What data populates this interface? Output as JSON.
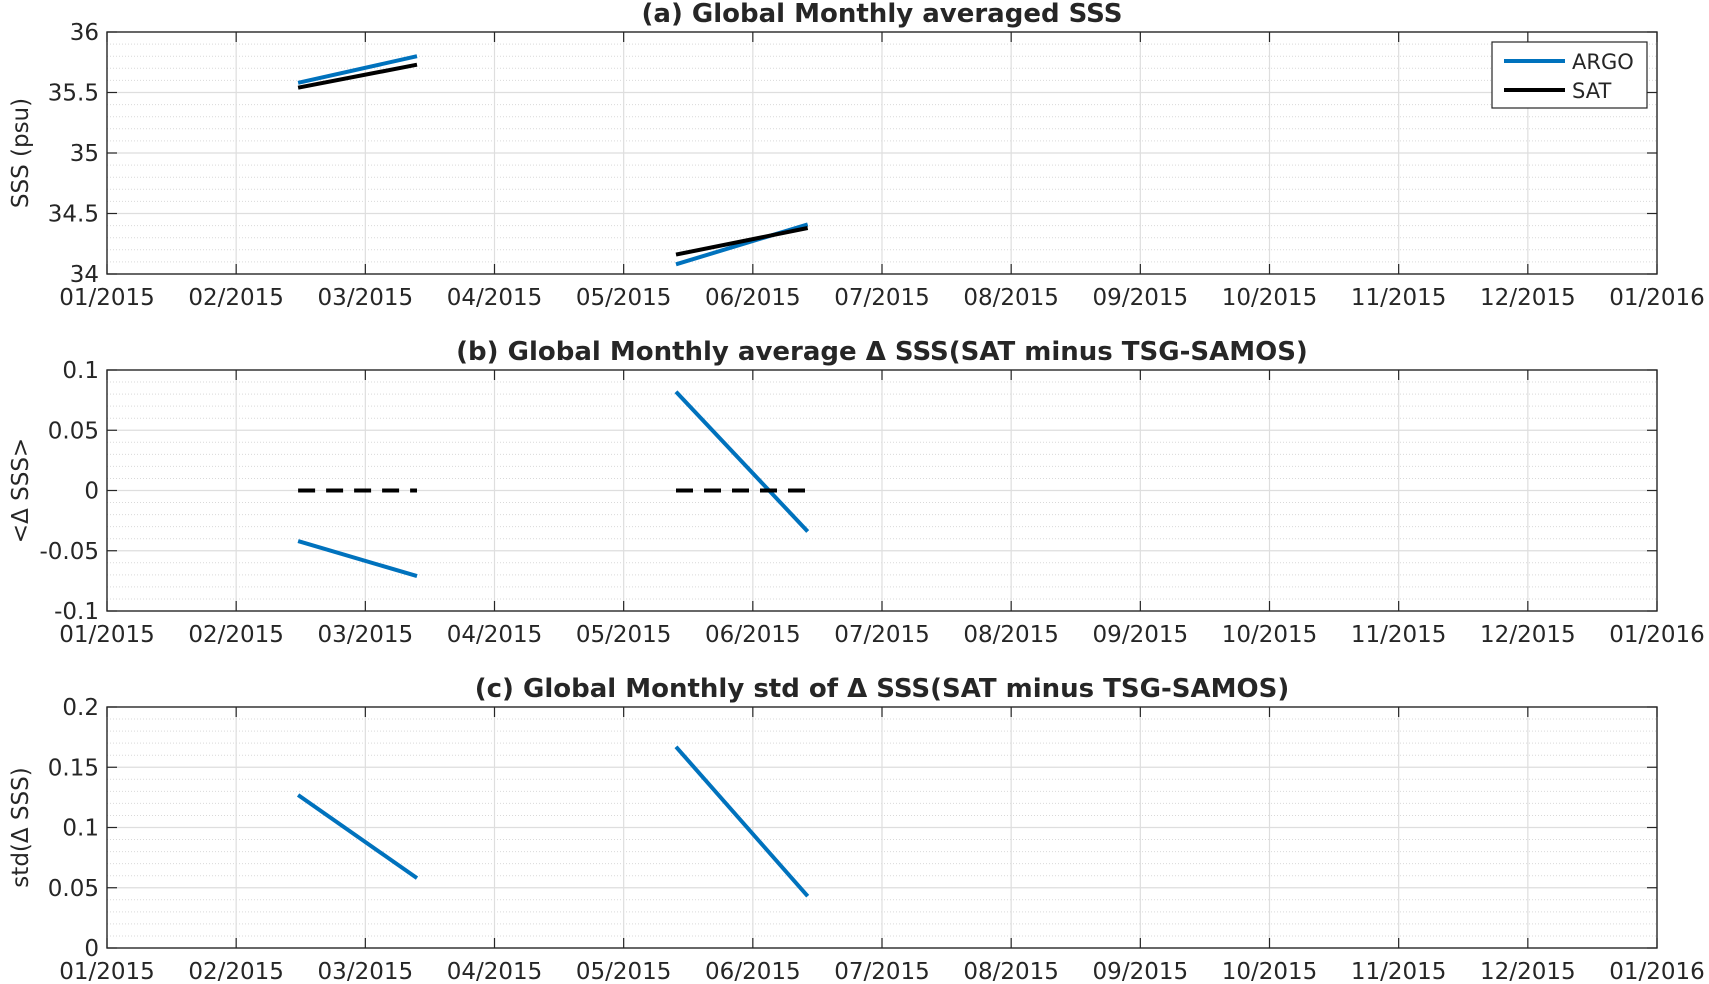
{
  "chart_data": [
    {
      "type": "line",
      "title": "(a) Global Monthly averaged SSS",
      "ylabel": "SSS (psu)",
      "xlabel": "",
      "xlim": [
        "2015-01-01",
        "2016-01-01"
      ],
      "ylim": [
        34,
        36
      ],
      "x_tick_labels": [
        "01/2015",
        "02/2015",
        "03/2015",
        "04/2015",
        "05/2015",
        "06/2015",
        "07/2015",
        "08/2015",
        "09/2015",
        "10/2015",
        "11/2015",
        "12/2015",
        "01/2016"
      ],
      "y_ticks": [
        34,
        34.5,
        35,
        35.5,
        36
      ],
      "y_tick_labels": [
        "34",
        "34.5",
        "35",
        "35.5",
        "36"
      ],
      "grid": true,
      "legend_placement": "top-right",
      "series": [
        {
          "name": "ARGO",
          "color": "#0072BD",
          "dash": "solid",
          "segments": [
            [
              {
                "x": "2015-02-15",
                "y": 35.58
              },
              {
                "x": "2015-03-15",
                "y": 35.8
              }
            ],
            [
              {
                "x": "2015-05-15",
                "y": 34.08
              },
              {
                "x": "2015-06-15",
                "y": 34.41
              }
            ]
          ]
        },
        {
          "name": "SAT",
          "color": "#000000",
          "dash": "solid",
          "segments": [
            [
              {
                "x": "2015-02-15",
                "y": 35.54
              },
              {
                "x": "2015-03-15",
                "y": 35.73
              }
            ],
            [
              {
                "x": "2015-05-15",
                "y": 34.16
              },
              {
                "x": "2015-06-15",
                "y": 34.38
              }
            ]
          ]
        }
      ]
    },
    {
      "type": "line",
      "title": "(b) Global Monthly average Δ SSS(SAT minus TSG-SAMOS)",
      "ylabel": "<Δ SSS>",
      "xlabel": "",
      "xlim": [
        "2015-01-01",
        "2016-01-01"
      ],
      "ylim": [
        -0.1,
        0.1
      ],
      "x_tick_labels": [
        "01/2015",
        "02/2015",
        "03/2015",
        "04/2015",
        "05/2015",
        "06/2015",
        "07/2015",
        "08/2015",
        "09/2015",
        "10/2015",
        "11/2015",
        "12/2015",
        "01/2016"
      ],
      "y_ticks": [
        -0.1,
        -0.05,
        0,
        0.05,
        0.1
      ],
      "y_tick_labels": [
        "-0.1",
        "-0.05",
        "0",
        "0.05",
        "0.1"
      ],
      "grid": true,
      "series": [
        {
          "color": "#0072BD",
          "dash": "solid",
          "segments": [
            [
              {
                "x": "2015-02-15",
                "y": -0.042
              },
              {
                "x": "2015-03-15",
                "y": -0.071
              }
            ],
            [
              {
                "x": "2015-05-15",
                "y": 0.082
              },
              {
                "x": "2015-06-15",
                "y": -0.034
              }
            ]
          ]
        },
        {
          "color": "#000000",
          "dash": "dashed",
          "segments": [
            [
              {
                "x": "2015-02-15",
                "y": 0
              },
              {
                "x": "2015-03-15",
                "y": 0
              }
            ],
            [
              {
                "x": "2015-05-15",
                "y": 0
              },
              {
                "x": "2015-06-15",
                "y": 0
              }
            ]
          ]
        }
      ]
    },
    {
      "type": "line",
      "title": "(c) Global Monthly std of Δ SSS(SAT minus TSG-SAMOS)",
      "ylabel": "std(Δ SSS)",
      "xlabel": "",
      "xlim": [
        "2015-01-01",
        "2016-01-01"
      ],
      "ylim": [
        0,
        0.2
      ],
      "x_tick_labels": [
        "01/2015",
        "02/2015",
        "03/2015",
        "04/2015",
        "05/2015",
        "06/2015",
        "07/2015",
        "08/2015",
        "09/2015",
        "10/2015",
        "11/2015",
        "12/2015",
        "01/2016"
      ],
      "y_ticks": [
        0,
        0.05,
        0.1,
        0.15,
        0.2
      ],
      "y_tick_labels": [
        "0",
        "0.05",
        "0.1",
        "0.15",
        "0.2"
      ],
      "grid": true,
      "series": [
        {
          "color": "#0072BD",
          "dash": "solid",
          "segments": [
            [
              {
                "x": "2015-02-15",
                "y": 0.127
              },
              {
                "x": "2015-03-15",
                "y": 0.058
              }
            ],
            [
              {
                "x": "2015-05-15",
                "y": 0.167
              },
              {
                "x": "2015-06-15",
                "y": 0.043
              }
            ]
          ]
        }
      ]
    }
  ]
}
